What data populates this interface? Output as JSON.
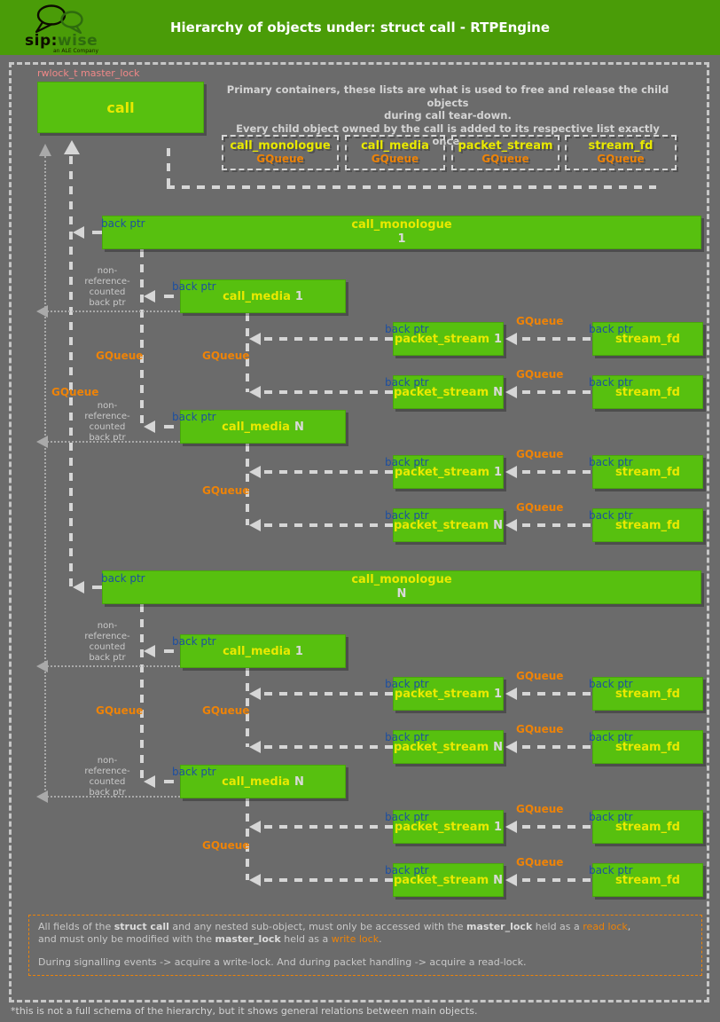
{
  "colors": {
    "bg": "#6b6b6b",
    "header_green": "#4a9c08",
    "box_green": "#57c00f",
    "box_border": "#49a50c",
    "yellow": "#e9e900",
    "suffix_gray": "#d9d9d9",
    "orange": "#ee8307",
    "blue": "#1d4fa0",
    "pink": "#f08888",
    "line": "#d6d6d6",
    "dotted": "#a9a9a9",
    "text_gray": "#c9c9c9",
    "text_light": "#d4d4d4"
  },
  "header": {
    "title": "Hierarchy of objects under: struct call - RTPEngine",
    "logo_sip": "sip:",
    "logo_wise": "wise",
    "logo_tagline": "an ALE Company"
  },
  "labels": {
    "rwlock": "rwlock_t master_lock",
    "back_ptr": "back ptr",
    "gqueue": "GQueue",
    "non_ref": [
      "non-",
      "reference-",
      "counted",
      "back ptr"
    ]
  },
  "primary_note": [
    "Primary containers, these lists are what is used to free and release the child objects",
    "during call tear-down.",
    "Every child object owned by the call is added to its respective list exactly once."
  ],
  "call_box": {
    "label": "call"
  },
  "containers": [
    {
      "title": "call_monologue",
      "q": "GQueue"
    },
    {
      "title": "call_media",
      "q": "GQueue"
    },
    {
      "title": "packet_stream",
      "q": "GQueue"
    },
    {
      "title": "stream_fd",
      "q": "GQueue"
    }
  ],
  "boxes": {
    "mono": "call_monologue",
    "media": "call_media",
    "ps": "packet_stream",
    "sf": "stream_fd",
    "one": "1",
    "n": "N"
  },
  "note": {
    "line1": [
      {
        "t": "All fields of the ",
        "s": "n"
      },
      {
        "t": "struct call",
        "s": "b"
      },
      {
        "t": " and any nested sub-object, must only be accessed with the ",
        "s": "n"
      },
      {
        "t": "master_lock",
        "s": "b"
      },
      {
        "t": " held as a ",
        "s": "n"
      },
      {
        "t": "read lock",
        "s": "o"
      },
      {
        "t": ",",
        "s": "n"
      }
    ],
    "line2": [
      {
        "t": "and must only be modified with the ",
        "s": "n"
      },
      {
        "t": "master_lock",
        "s": "b"
      },
      {
        "t": " held as a ",
        "s": "n"
      },
      {
        "t": "write lock",
        "s": "o"
      },
      {
        "t": ".",
        "s": "n"
      }
    ],
    "line4": "During signalling events -> acquire a write-lock. And during packet handling -> acquire a read-lock."
  },
  "footer": {
    "text": "*this is not a full schema of the hierarchy, but it shows general relations between main objects."
  }
}
